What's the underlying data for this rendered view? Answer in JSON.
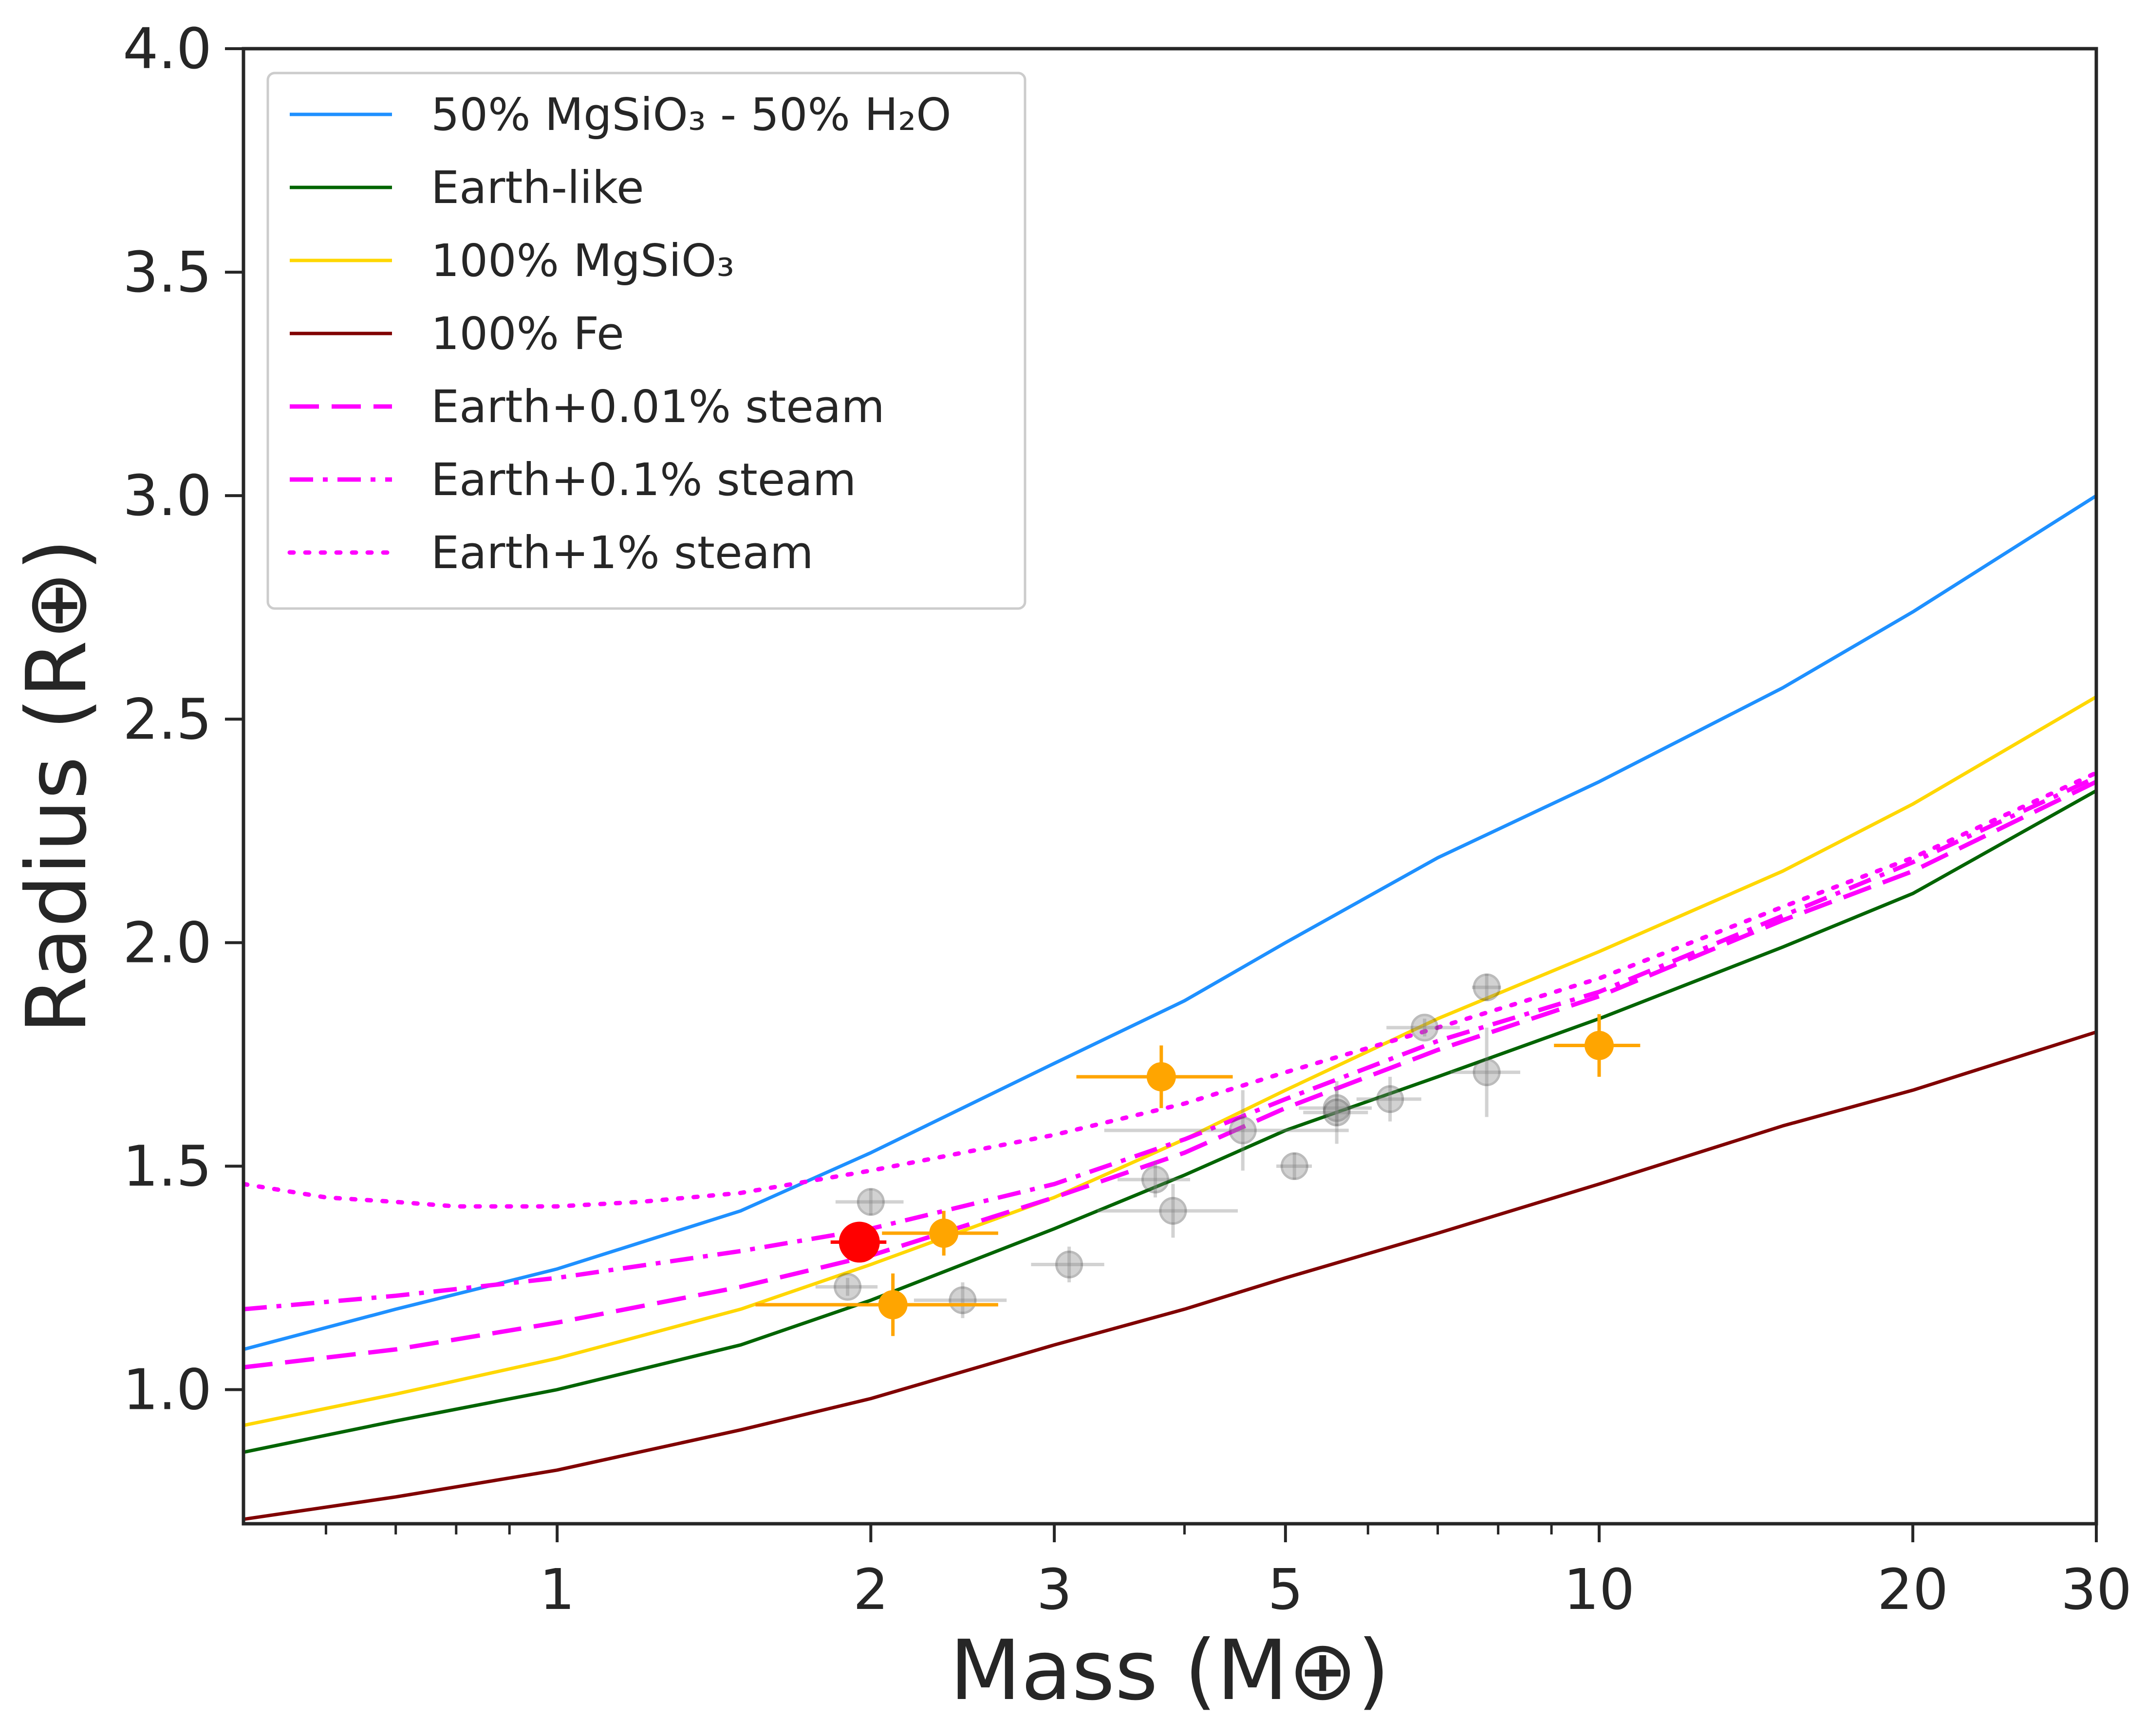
{
  "chart_data": {
    "type": "line",
    "xlabel": "Mass (M⊕)",
    "ylabel": "Radius (R⊕)",
    "xscale": "log",
    "xlim": [
      0.5,
      30
    ],
    "ylim": [
      0.7,
      4.0
    ],
    "x_ticks": [
      {
        "value": 1,
        "label": "1"
      },
      {
        "value": 2,
        "label": "2"
      },
      {
        "value": 3,
        "label": "3"
      },
      {
        "value": 5,
        "label": "5"
      },
      {
        "value": 10,
        "label": "10"
      },
      {
        "value": 20,
        "label": "20"
      },
      {
        "value": 30,
        "label": "30"
      }
    ],
    "x_minor_ticks": [
      0.6,
      0.7,
      0.8,
      0.9,
      4,
      6,
      7,
      8,
      9
    ],
    "y_ticks": [
      {
        "value": 1.0,
        "label": "1.0"
      },
      {
        "value": 1.5,
        "label": "1.5"
      },
      {
        "value": 2.0,
        "label": "2.0"
      },
      {
        "value": 2.5,
        "label": "2.5"
      },
      {
        "value": 3.0,
        "label": "3.0"
      },
      {
        "value": 3.5,
        "label": "3.5"
      },
      {
        "value": 4.0,
        "label": "4.0"
      }
    ],
    "grid": false,
    "legend_position": "top-left",
    "series": [
      {
        "name": "50% MgSiO₃ - 50% H₂O",
        "style": "solid",
        "color": "#1e90ff",
        "x": [
          0.5,
          0.7,
          1,
          1.5,
          2,
          3,
          4,
          5,
          7,
          10,
          15,
          20,
          30
        ],
        "y": [
          1.09,
          1.18,
          1.27,
          1.4,
          1.53,
          1.73,
          1.87,
          2.0,
          2.19,
          2.36,
          2.57,
          2.74,
          3.0
        ]
      },
      {
        "name": "Earth-like",
        "style": "solid",
        "color": "#006400",
        "x": [
          0.5,
          0.7,
          1,
          1.5,
          2,
          3,
          4,
          5,
          7,
          10,
          15,
          20,
          30
        ],
        "y": [
          0.86,
          0.93,
          1.0,
          1.1,
          1.2,
          1.36,
          1.48,
          1.58,
          1.7,
          1.83,
          1.99,
          2.11,
          2.34
        ]
      },
      {
        "name": "100% MgSiO₃",
        "style": "solid",
        "color": "#ffd700",
        "x": [
          0.5,
          0.7,
          1,
          1.5,
          2,
          3,
          4,
          5,
          7,
          10,
          15,
          20,
          30
        ],
        "y": [
          0.92,
          0.99,
          1.07,
          1.18,
          1.28,
          1.43,
          1.56,
          1.67,
          1.83,
          1.98,
          2.16,
          2.31,
          2.55
        ]
      },
      {
        "name": "100% Fe",
        "style": "solid",
        "color": "#800000",
        "x": [
          0.5,
          0.7,
          1,
          1.5,
          2,
          3,
          4,
          5,
          7,
          10,
          15,
          20,
          30
        ],
        "y": [
          0.71,
          0.76,
          0.82,
          0.91,
          0.98,
          1.1,
          1.18,
          1.25,
          1.35,
          1.46,
          1.59,
          1.67,
          1.8
        ]
      },
      {
        "name": "Earth+0.01% steam",
        "style": "dashed",
        "color": "#ff00ff",
        "x": [
          0.5,
          0.7,
          1,
          1.5,
          2,
          3,
          4,
          5,
          7,
          10,
          15,
          20,
          30
        ],
        "y": [
          1.05,
          1.09,
          1.15,
          1.23,
          1.3,
          1.43,
          1.53,
          1.63,
          1.76,
          1.88,
          2.05,
          2.16,
          2.36
        ]
      },
      {
        "name": "Earth+0.1% steam",
        "style": "dashdot",
        "color": "#ff00ff",
        "x": [
          0.5,
          0.7,
          1,
          1.5,
          2,
          3,
          4,
          5,
          7,
          10,
          15,
          20,
          30
        ],
        "y": [
          1.18,
          1.21,
          1.25,
          1.31,
          1.36,
          1.46,
          1.56,
          1.65,
          1.78,
          1.89,
          2.06,
          2.18,
          2.37
        ]
      },
      {
        "name": "Earth+1% steam",
        "style": "dotted",
        "color": "#ff00ff",
        "x": [
          0.5,
          0.6,
          0.7,
          0.8,
          1,
          1.2,
          1.5,
          2,
          3,
          4,
          5,
          7,
          10,
          15,
          20,
          30
        ],
        "y": [
          1.46,
          1.43,
          1.42,
          1.41,
          1.41,
          1.42,
          1.44,
          1.49,
          1.57,
          1.64,
          1.71,
          1.81,
          1.92,
          2.08,
          2.19,
          2.38
        ]
      }
    ],
    "scatter_points": [
      {
        "group": "literature",
        "x": 2.0,
        "y": 1.42,
        "xerr": 0.15,
        "yerr": 0.03
      },
      {
        "group": "literature",
        "x": 1.9,
        "y": 1.23,
        "xerr": 0.13,
        "yerr": 0.02
      },
      {
        "group": "literature",
        "x": 2.45,
        "y": 1.2,
        "xerr": 0.25,
        "yerr": 0.04
      },
      {
        "group": "literature",
        "x": 3.1,
        "y": 1.28,
        "xerr": 0.25,
        "yerr": 0.04
      },
      {
        "group": "literature",
        "x": 3.75,
        "y": 1.47,
        "xerr": 0.3,
        "yerr": 0.04
      },
      {
        "group": "literature",
        "x": 3.9,
        "y": 1.4,
        "xerr": 0.6,
        "yerr": 0.06
      },
      {
        "group": "literature",
        "x": 4.55,
        "y": 1.58,
        "xerr": 1.2,
        "yerr": 0.09
      },
      {
        "group": "literature",
        "x": 5.1,
        "y": 1.5,
        "xerr": 0.2,
        "yerr": 0.03
      },
      {
        "group": "literature",
        "x": 5.6,
        "y": 1.63,
        "xerr": 0.45,
        "yerr": 0.04
      },
      {
        "group": "literature",
        "x": 5.6,
        "y": 1.62,
        "xerr": 0.4,
        "yerr": 0.07
      },
      {
        "group": "literature",
        "x": 6.3,
        "y": 1.65,
        "xerr": 0.45,
        "yerr": 0.05
      },
      {
        "group": "literature",
        "x": 6.8,
        "y": 1.81,
        "xerr": 0.55,
        "yerr": 0.02
      },
      {
        "group": "literature",
        "x": 7.8,
        "y": 1.9,
        "xerr": 0.25,
        "yerr": 0.03
      },
      {
        "group": "literature",
        "x": 7.8,
        "y": 1.71,
        "xerr": 0.6,
        "yerr": 0.1
      },
      {
        "group": "highlighted",
        "x": 3.8,
        "y": 1.7,
        "xerr": 0.65,
        "yerr": 0.07
      },
      {
        "group": "highlighted",
        "x": 2.35,
        "y": 1.35,
        "xerr": 0.3,
        "yerr": 0.05
      },
      {
        "group": "highlighted",
        "x": 2.1,
        "y": 1.19,
        "xerr": 0.55,
        "yerr": 0.07
      },
      {
        "group": "highlighted",
        "x": 10.0,
        "y": 1.77,
        "xerr": 0.95,
        "yerr": 0.07
      },
      {
        "group": "target",
        "x": 1.95,
        "y": 1.33,
        "xerr": 0.12,
        "yerr": 0.02
      }
    ],
    "point_colors": {
      "literature": "#808080",
      "highlighted": "#ffa500",
      "target": "#ff0000"
    }
  }
}
